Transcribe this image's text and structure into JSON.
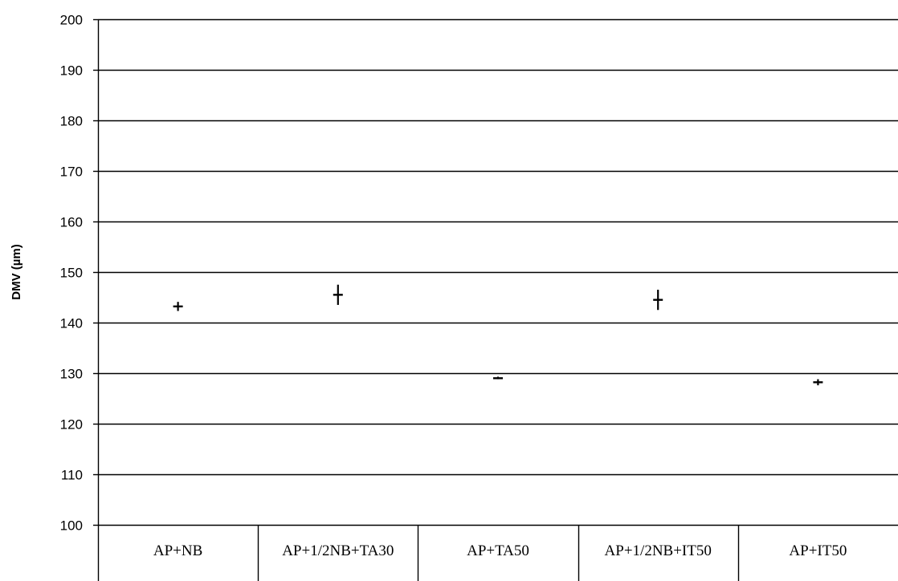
{
  "chart_data": {
    "type": "scatter",
    "title": "",
    "xlabel": "",
    "ylabel": "DMV (µm)",
    "ylim": [
      100,
      200
    ],
    "yticks": [
      100,
      110,
      120,
      130,
      140,
      150,
      160,
      170,
      180,
      190,
      200
    ],
    "grid": true,
    "legend": "none",
    "categories": [
      "AP+NB",
      "AP+1/2NB+TA30",
      "AP+TA50",
      "AP+1/2NB+IT50",
      "AP+IT50"
    ],
    "series": [
      {
        "values": [
          143.2,
          145.5,
          129.0,
          144.5,
          128.2
        ],
        "error_low": [
          142.3,
          143.5,
          128.8,
          142.5,
          127.6
        ],
        "error_high": [
          144.1,
          147.5,
          129.3,
          146.5,
          128.8
        ],
        "color": "#000000"
      }
    ]
  }
}
